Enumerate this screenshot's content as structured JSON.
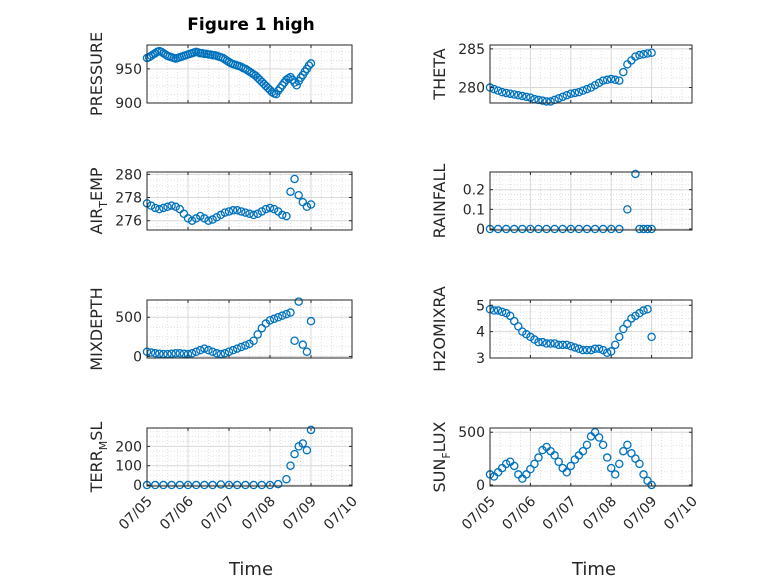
{
  "figure": {
    "title": "Figure 1 high",
    "xlabel": "Time",
    "x_ticks": [
      "07/05",
      "07/06",
      "07/07",
      "07/08",
      "07/09",
      "07/10"
    ]
  },
  "colors": {
    "marker": "#0072bd",
    "grid": "#d9d9d9",
    "axis": "#262626"
  },
  "chart_data": [
    {
      "type": "scatter",
      "name": "PRESSURE",
      "ylabel": "PRESSURE",
      "ylim": [
        900,
        985
      ],
      "yticks": [
        900,
        950
      ],
      "x": [
        0,
        0.05,
        0.1,
        0.15,
        0.2,
        0.25,
        0.3,
        0.35,
        0.4,
        0.45,
        0.5,
        0.55,
        0.6,
        0.65,
        0.7,
        0.75,
        0.8,
        0.85,
        0.9,
        0.95,
        1.0,
        1.05,
        1.1,
        1.15,
        1.2,
        1.25,
        1.3,
        1.35,
        1.4,
        1.45,
        1.5,
        1.55,
        1.6,
        1.65,
        1.7,
        1.75,
        1.8,
        1.85,
        1.9,
        1.95,
        2.0,
        2.05,
        2.1,
        2.15,
        2.2,
        2.25,
        2.3,
        2.35,
        2.4,
        2.45,
        2.5,
        2.55,
        2.6,
        2.65,
        2.7,
        2.75,
        2.8,
        2.85,
        2.9,
        2.95,
        3.0,
        3.05,
        3.1,
        3.15,
        3.2,
        3.25,
        3.3,
        3.35,
        3.4,
        3.45,
        3.5,
        3.55,
        3.6,
        3.65,
        3.7,
        3.75,
        3.8,
        3.85,
        3.9,
        3.95,
        4.0
      ],
      "y": [
        966,
        967,
        969,
        971,
        973,
        975,
        976,
        975,
        973,
        971,
        969,
        968,
        967,
        966,
        965,
        966,
        967,
        968,
        969,
        970,
        971,
        972,
        973,
        974,
        975,
        974,
        973,
        973,
        972,
        972,
        971,
        971,
        970,
        970,
        969,
        968,
        967,
        966,
        964,
        962,
        960,
        958,
        957,
        956,
        955,
        954,
        953,
        951,
        950,
        948,
        946,
        944,
        942,
        940,
        937,
        934,
        931,
        928,
        925,
        922,
        919,
        916,
        914,
        913,
        918,
        922,
        926,
        930,
        934,
        936,
        938,
        934,
        930,
        926,
        932,
        937,
        941,
        946,
        950,
        955,
        958
      ],
      "y_unit_note": ""
    },
    {
      "type": "scatter",
      "name": "THETA",
      "ylabel": "THETA",
      "ylim": [
        278,
        285.5
      ],
      "yticks": [
        280,
        285
      ],
      "x": [
        0,
        0.1,
        0.2,
        0.3,
        0.4,
        0.5,
        0.6,
        0.7,
        0.8,
        0.9,
        1.0,
        1.1,
        1.2,
        1.3,
        1.4,
        1.5,
        1.6,
        1.7,
        1.8,
        1.9,
        2.0,
        2.1,
        2.2,
        2.3,
        2.4,
        2.5,
        2.6,
        2.7,
        2.8,
        2.9,
        3.0,
        3.1,
        3.2,
        3.3,
        3.4,
        3.5,
        3.6,
        3.7,
        3.8,
        3.9,
        4.0
      ],
      "y": [
        280,
        279.8,
        279.6,
        279.4,
        279.3,
        279.2,
        279.1,
        279.0,
        278.9,
        278.8,
        278.7,
        278.5,
        278.4,
        278.3,
        278.2,
        278.2,
        278.4,
        278.6,
        278.8,
        279.0,
        279.2,
        279.3,
        279.4,
        279.6,
        279.8,
        280.0,
        280.3,
        280.6,
        280.9,
        281.0,
        281.1,
        281.0,
        280.9,
        282.0,
        283.0,
        283.5,
        284.0,
        284.2,
        284.3,
        284.4,
        284.5
      ]
    },
    {
      "type": "scatter",
      "name": "AIR_TEMP",
      "ylabel": "AIR_TEMP",
      "ylim": [
        275.2,
        280.2
      ],
      "yticks": [
        276,
        278,
        280
      ],
      "x": [
        0,
        0.1,
        0.2,
        0.3,
        0.4,
        0.5,
        0.6,
        0.7,
        0.8,
        0.9,
        1.0,
        1.1,
        1.2,
        1.3,
        1.4,
        1.5,
        1.6,
        1.7,
        1.8,
        1.9,
        2.0,
        2.1,
        2.2,
        2.3,
        2.4,
        2.5,
        2.6,
        2.7,
        2.8,
        2.9,
        3.0,
        3.1,
        3.2,
        3.3,
        3.4,
        3.5,
        3.6,
        3.7,
        3.8,
        3.9,
        4.0
      ],
      "y": [
        277.5,
        277.3,
        277.1,
        277.0,
        277.1,
        277.2,
        277.3,
        277.2,
        277.0,
        276.6,
        276.2,
        276.0,
        276.2,
        276.4,
        276.2,
        276.0,
        276.1,
        276.3,
        276.5,
        276.7,
        276.8,
        276.9,
        276.9,
        276.8,
        276.7,
        276.6,
        276.5,
        276.6,
        276.8,
        277.0,
        277.1,
        277.0,
        276.8,
        276.5,
        276.4,
        278.5,
        279.6,
        278.2,
        277.6,
        277.2,
        277.4
      ]
    },
    {
      "type": "scatter",
      "name": "RAINFALL",
      "ylabel": "RAINFALL",
      "ylim": [
        -0.005,
        0.29
      ],
      "yticks": [
        0,
        0.1,
        0.2
      ],
      "x": [
        0,
        0.2,
        0.4,
        0.6,
        0.8,
        1.0,
        1.2,
        1.4,
        1.6,
        1.8,
        2.0,
        2.2,
        2.4,
        2.6,
        2.8,
        3.0,
        3.2,
        3.4,
        3.6,
        3.7,
        3.8,
        3.9,
        4.0
      ],
      "y": [
        0,
        0,
        0,
        0,
        0,
        0,
        0,
        0,
        0,
        0,
        0,
        0,
        0,
        0,
        0,
        0,
        0,
        0.1,
        0.28,
        0,
        0,
        0,
        0
      ]
    },
    {
      "type": "scatter",
      "name": "MIXDEPTH",
      "ylabel": "MIXDEPTH",
      "ylim": [
        -20,
        720
      ],
      "yticks": [
        0,
        500
      ],
      "x": [
        0,
        0.1,
        0.2,
        0.3,
        0.4,
        0.5,
        0.6,
        0.7,
        0.8,
        0.9,
        1.0,
        1.1,
        1.2,
        1.3,
        1.4,
        1.5,
        1.6,
        1.7,
        1.8,
        1.9,
        2.0,
        2.1,
        2.2,
        2.3,
        2.4,
        2.5,
        2.6,
        2.7,
        2.8,
        2.9,
        3.0,
        3.1,
        3.2,
        3.3,
        3.4,
        3.5,
        3.6,
        3.7,
        3.8,
        3.9,
        4.0
      ],
      "y": [
        60,
        50,
        40,
        35,
        30,
        30,
        35,
        40,
        40,
        35,
        30,
        40,
        60,
        80,
        100,
        80,
        60,
        40,
        30,
        40,
        60,
        80,
        100,
        120,
        140,
        160,
        200,
        280,
        360,
        420,
        460,
        480,
        500,
        520,
        540,
        560,
        200,
        700,
        150,
        60,
        450
      ]
    },
    {
      "type": "scatter",
      "name": "H2OMIXRA",
      "ylabel": "H2OMIXRA",
      "ylim": [
        3,
        5.2
      ],
      "yticks": [
        3,
        4,
        5
      ],
      "x": [
        0,
        0.1,
        0.2,
        0.3,
        0.4,
        0.5,
        0.6,
        0.7,
        0.8,
        0.9,
        1.0,
        1.1,
        1.2,
        1.3,
        1.4,
        1.5,
        1.6,
        1.7,
        1.8,
        1.9,
        2.0,
        2.1,
        2.2,
        2.3,
        2.4,
        2.5,
        2.6,
        2.7,
        2.8,
        2.9,
        3.0,
        3.1,
        3.2,
        3.3,
        3.4,
        3.5,
        3.6,
        3.7,
        3.8,
        3.9,
        4.0
      ],
      "y": [
        4.85,
        4.8,
        4.8,
        4.75,
        4.7,
        4.6,
        4.4,
        4.2,
        4.0,
        3.9,
        3.8,
        3.7,
        3.6,
        3.6,
        3.55,
        3.55,
        3.55,
        3.5,
        3.5,
        3.5,
        3.45,
        3.4,
        3.35,
        3.3,
        3.3,
        3.3,
        3.35,
        3.35,
        3.3,
        3.2,
        3.25,
        3.5,
        3.8,
        4.1,
        4.3,
        4.5,
        4.6,
        4.7,
        4.8,
        4.85,
        3.8
      ]
    },
    {
      "type": "scatter",
      "name": "TERR_MSL",
      "ylabel": "TERR_MSL",
      "ylim": [
        -5,
        295
      ],
      "yticks": [
        0,
        100,
        200
      ],
      "x": [
        0,
        0.2,
        0.4,
        0.6,
        0.8,
        1.0,
        1.2,
        1.4,
        1.6,
        1.8,
        2.0,
        2.2,
        2.4,
        2.6,
        2.8,
        3.0,
        3.2,
        3.4,
        3.5,
        3.6,
        3.7,
        3.8,
        3.9,
        4.0
      ],
      "y": [
        0,
        0,
        0,
        0,
        0,
        0,
        0,
        0,
        0,
        3,
        0,
        0,
        0,
        0,
        0,
        0,
        5,
        30,
        100,
        160,
        200,
        215,
        180,
        285
      ]
    },
    {
      "type": "scatter",
      "name": "SUN_FLUX",
      "ylabel": "SUN_FLUX",
      "ylim": [
        -10,
        540
      ],
      "yticks": [
        0,
        500
      ],
      "x": [
        0,
        0.1,
        0.2,
        0.3,
        0.4,
        0.5,
        0.6,
        0.7,
        0.8,
        0.9,
        1.0,
        1.1,
        1.2,
        1.3,
        1.4,
        1.5,
        1.6,
        1.7,
        1.8,
        1.9,
        2.0,
        2.1,
        2.2,
        2.3,
        2.4,
        2.5,
        2.6,
        2.7,
        2.8,
        2.9,
        3.0,
        3.1,
        3.2,
        3.3,
        3.4,
        3.5,
        3.6,
        3.7,
        3.8,
        3.9,
        4.0
      ],
      "y": [
        100,
        80,
        120,
        160,
        200,
        220,
        180,
        100,
        60,
        100,
        150,
        200,
        260,
        330,
        360,
        320,
        280,
        220,
        160,
        120,
        180,
        240,
        280,
        320,
        380,
        460,
        500,
        450,
        380,
        260,
        160,
        100,
        200,
        320,
        380,
        300,
        250,
        200,
        100,
        40,
        0
      ]
    }
  ]
}
